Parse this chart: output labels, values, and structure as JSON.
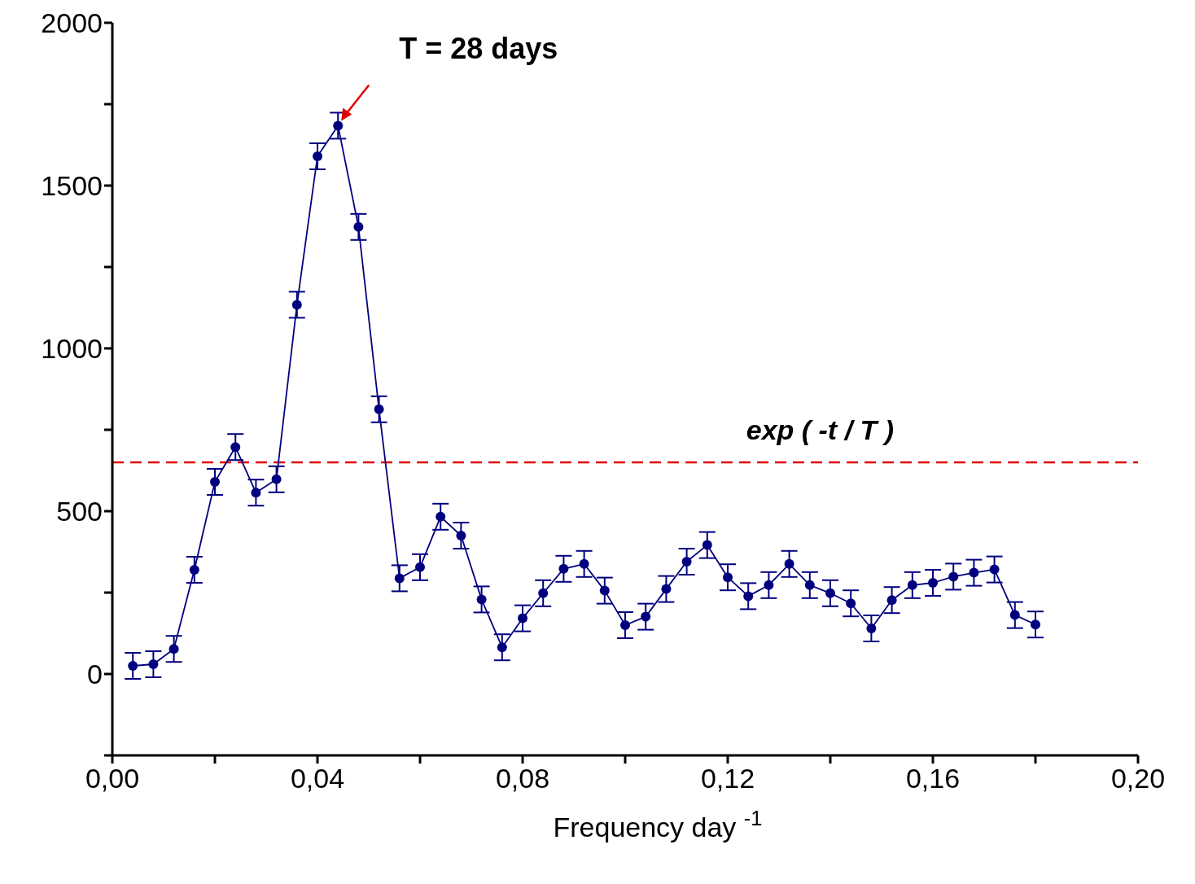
{
  "chart_data": {
    "type": "line",
    "xlabel": "Frequency        day $^{-1}$",
    "x": [
      0.004,
      0.008,
      0.012,
      0.016,
      0.02,
      0.024,
      0.028,
      0.032,
      0.036,
      0.04,
      0.044,
      0.048,
      0.052,
      0.056,
      0.06,
      0.064,
      0.068,
      0.072,
      0.076,
      0.08,
      0.084,
      0.088,
      0.092,
      0.096,
      0.1,
      0.104,
      0.108,
      0.112,
      0.116,
      0.12,
      0.124,
      0.128,
      0.132,
      0.136,
      0.14,
      0.144,
      0.148,
      0.152,
      0.156,
      0.16,
      0.164,
      0.168,
      0.172,
      0.176,
      0.18
    ],
    "series": [
      {
        "color": "#00007f",
        "values": [
          25,
          30,
          77,
          320,
          590,
          697,
          557,
          598,
          1134,
          1590,
          1684,
          1373,
          813,
          294,
          328,
          483,
          425,
          229,
          82,
          171,
          248,
          323,
          338,
          256,
          150,
          176,
          261,
          345,
          396,
          297,
          239,
          273,
          338,
          273,
          248,
          217,
          140,
          227,
          273,
          280,
          299,
          311,
          321,
          181,
          152
        ],
        "errors": [
          40,
          40,
          40,
          40,
          40,
          40,
          40,
          40,
          40,
          40,
          40,
          40,
          40,
          40,
          40,
          40,
          40,
          40,
          40,
          40,
          40,
          40,
          40,
          40,
          40,
          40,
          40,
          40,
          40,
          40,
          40,
          40,
          40,
          40,
          40,
          40,
          40,
          40,
          40,
          40,
          40,
          40,
          40,
          40,
          40
        ]
      }
    ],
    "xlim": [
      0,
      0.2
    ],
    "xticks": [
      {
        "value": 0,
        "label": "0,00"
      },
      {
        "value": 0.02,
        "label": null
      },
      {
        "value": 0.04,
        "label": "0,04"
      },
      {
        "value": 0.06,
        "label": null
      },
      {
        "value": 0.08,
        "label": "0,08"
      },
      {
        "value": 0.1,
        "label": null
      },
      {
        "value": 0.12,
        "label": "0,12"
      },
      {
        "value": 0.14,
        "label": null
      },
      {
        "value": 0.16,
        "label": "0,16"
      },
      {
        "value": 0.18,
        "label": null
      },
      {
        "value": 0.2,
        "label": "0,20"
      }
    ],
    "ylim": [
      -250,
      2000
    ],
    "yticks": [
      {
        "value": -250,
        "label": null
      },
      0,
      {
        "value": 250,
        "label": null
      },
      500,
      {
        "value": 750,
        "label": null
      },
      1000,
      {
        "value": 1250,
        "label": null
      },
      1500,
      {
        "value": 1750,
        "label": null
      },
      2000
    ],
    "ref_lines": [
      {
        "axis": "y",
        "value": 650,
        "label": "exp ( -t / T )",
        "color": "#e00000",
        "line_style": "dashed"
      }
    ],
    "annotations": [
      {
        "text": "T = 28 days",
        "x": 0.044,
        "y": 1684
      }
    ],
    "marker": "circle",
    "line_style": "solid",
    "grid": false,
    "legend": false
  }
}
